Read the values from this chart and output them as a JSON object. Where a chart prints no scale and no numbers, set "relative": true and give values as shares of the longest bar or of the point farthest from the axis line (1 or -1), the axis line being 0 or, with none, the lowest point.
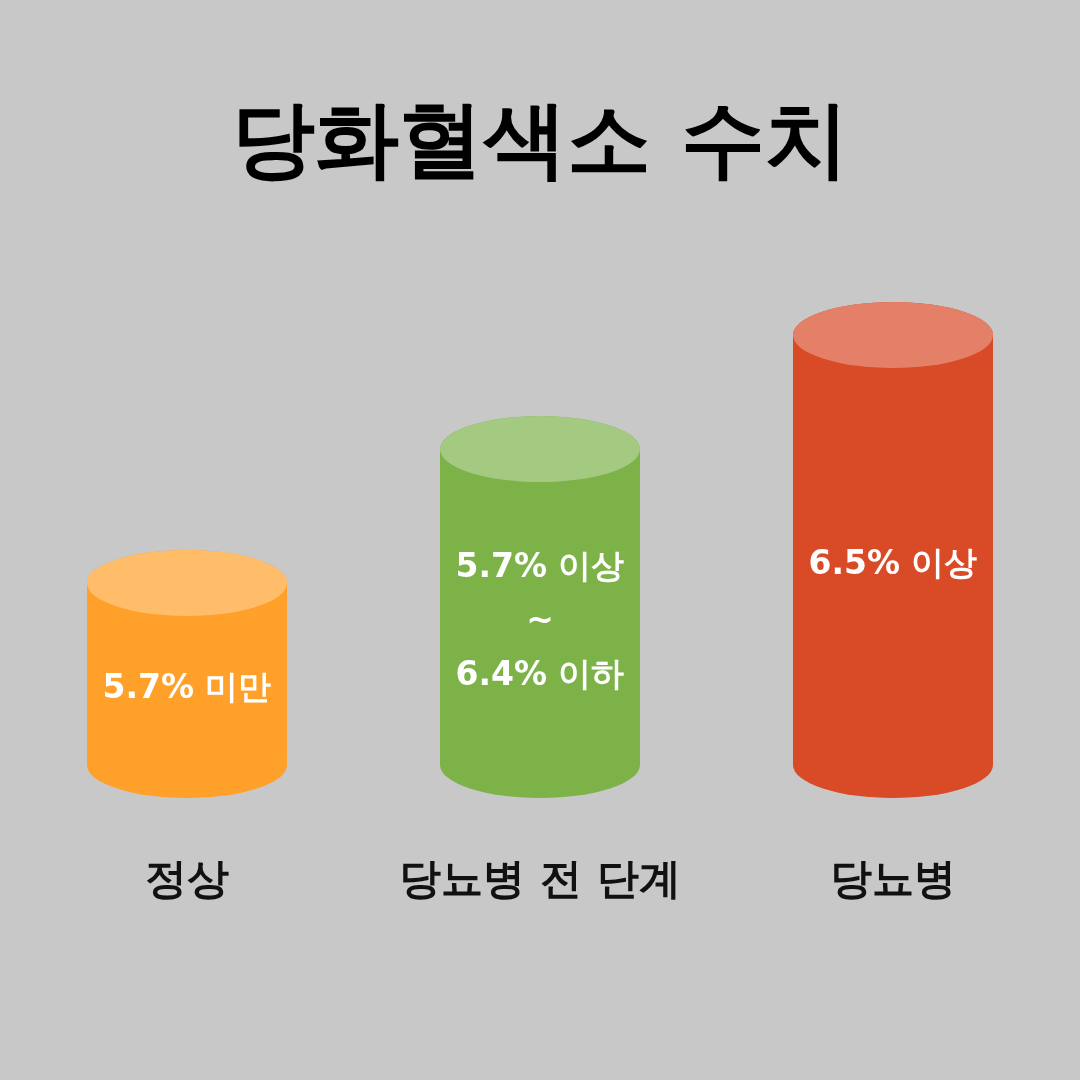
{
  "chart_data": {
    "type": "bar",
    "title": "당화혈색소 수치",
    "relative": true,
    "categories": [
      "정상",
      "당뇨병 전 단계",
      "당뇨병"
    ],
    "values": [
      0.5,
      0.77,
      1
    ],
    "colors": [
      "#ffa02a",
      "#7db249",
      "#d94a27"
    ],
    "annotations": [
      "5.7% 미만",
      "5.7% 이상\n~\n6.4% 이하",
      "6.5% 이상"
    ]
  }
}
